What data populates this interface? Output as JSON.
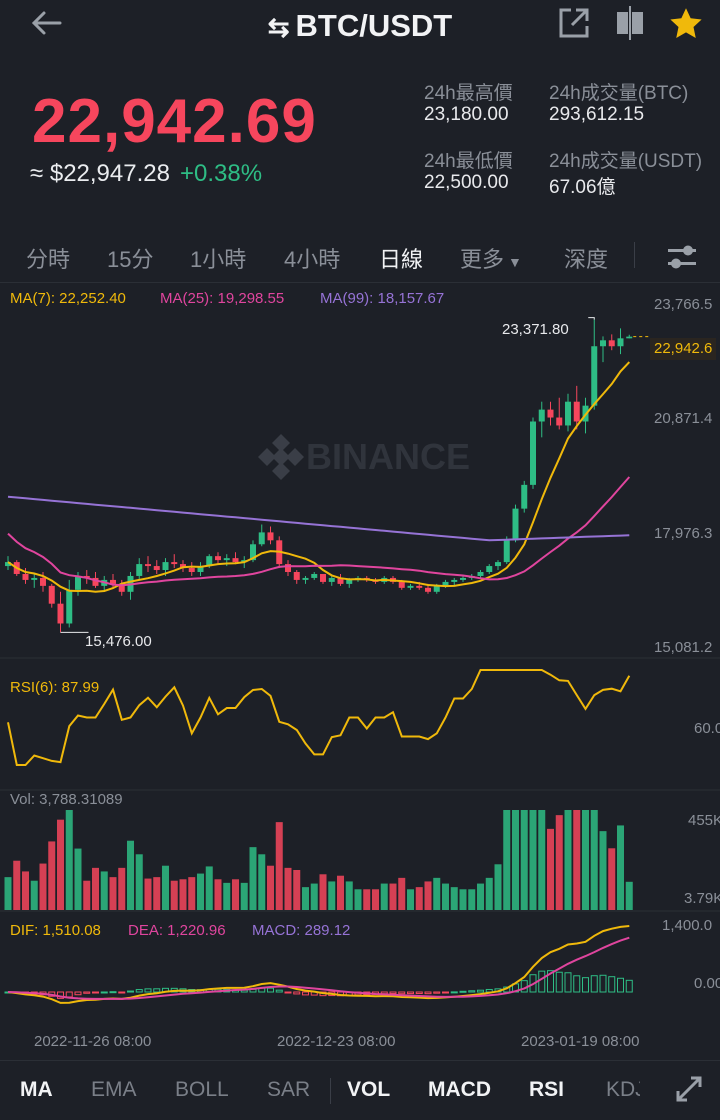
{
  "header": {
    "title": "BTC/USDT",
    "back_icon": "arrow-left-icon",
    "icons": [
      "share-icon",
      "compare-icon",
      "star-icon"
    ],
    "star_color": "#f0b90b"
  },
  "ticker": {
    "last_price": "22,942.69",
    "usd_value": "≈ $22,947.28",
    "change_pct": "+0.38%",
    "high_label": "24h最高價",
    "high_value": "23,180.00",
    "low_label": "24h最低價",
    "low_value": "22,500.00",
    "vol_btc_label": "24h成交量(BTC)",
    "vol_btc_value": "293,612.15",
    "vol_usdt_label": "24h成交量(USDT)",
    "vol_usdt_value": "67.06億"
  },
  "tabs": [
    "分時",
    "15分",
    "1小時",
    "4小時",
    "日線",
    "更多",
    "深度"
  ],
  "active_tab": "日線",
  "settings_icon": "sliders-icon",
  "main_chart": {
    "ma7": "MA(7): 22,252.40",
    "ma25": "MA(25): 19,298.55",
    "ma99": "MA(99): 18,157.67",
    "y_ticks": [
      "23,766.5",
      "20,871.4",
      "17,976.3",
      "15,081.2"
    ],
    "high_marker": "23,371.80",
    "low_marker": "15,476.00",
    "last_tag": "22,942.6",
    "watermark": "BINANCE",
    "colors": {
      "up": "#2ebd85",
      "down": "#f6465d",
      "ma7": "#f0b90b",
      "ma25": "#e0459e",
      "ma99": "#9673d6"
    }
  },
  "rsi": {
    "label": "RSI(6): 87.99",
    "tick": "60.0"
  },
  "volume": {
    "label": "Vol: 3,788.31089",
    "ticks": [
      "455K",
      "3.79K"
    ]
  },
  "macd": {
    "dif": "DIF: 1,510.08",
    "dea": "DEA: 1,220.96",
    "macd": "MACD: 289.12",
    "ticks": [
      "1,400.0",
      "0.00"
    ]
  },
  "x_labels": [
    "2022-11-26 08:00",
    "2022-12-23 08:00",
    "2023-01-19 08:00"
  ],
  "indicators": [
    "MA",
    "EMA",
    "BOLL",
    "SAR",
    "VOL",
    "MACD",
    "RSI",
    "KDJ"
  ],
  "active_indicators": [
    "MA",
    "VOL",
    "MACD",
    "RSI"
  ],
  "expand_icon": "expand-icon",
  "chart_data": {
    "type": "candlestick",
    "interval": "1d",
    "ylim": [
      15081.2,
      23766.5
    ],
    "candles": [
      [
        17150,
        17400,
        17050,
        17250
      ],
      [
        17250,
        17300,
        16900,
        16950
      ],
      [
        16950,
        17100,
        16700,
        16800
      ],
      [
        16800,
        16950,
        16600,
        16850
      ],
      [
        16850,
        17000,
        16500,
        16650
      ],
      [
        16650,
        16700,
        16100,
        16200
      ],
      [
        16200,
        16500,
        15476,
        15700
      ],
      [
        15700,
        16800,
        15600,
        16550
      ],
      [
        16550,
        17000,
        16400,
        16900
      ],
      [
        16900,
        17050,
        16700,
        16850
      ],
      [
        16850,
        17000,
        16600,
        16650
      ],
      [
        16650,
        16900,
        16500,
        16800
      ],
      [
        16800,
        16950,
        16600,
        16700
      ],
      [
        16700,
        16800,
        16400,
        16500
      ],
      [
        16500,
        17000,
        16300,
        16900
      ],
      [
        16900,
        17350,
        16800,
        17200
      ],
      [
        17200,
        17400,
        17000,
        17150
      ],
      [
        17150,
        17300,
        16950,
        17050
      ],
      [
        17050,
        17350,
        16900,
        17250
      ],
      [
        17250,
        17450,
        17100,
        17200
      ],
      [
        17200,
        17300,
        17000,
        17100
      ],
      [
        17100,
        17250,
        16900,
        17000
      ],
      [
        17000,
        17250,
        16900,
        17150
      ],
      [
        17150,
        17450,
        17100,
        17400
      ],
      [
        17400,
        17500,
        17200,
        17300
      ],
      [
        17300,
        17450,
        17150,
        17350
      ],
      [
        17350,
        17500,
        17200,
        17250
      ],
      [
        17250,
        17400,
        17100,
        17300
      ],
      [
        17300,
        17800,
        17250,
        17700
      ],
      [
        17700,
        18200,
        17650,
        18000
      ],
      [
        18000,
        18150,
        17700,
        17800
      ],
      [
        17800,
        17900,
        17100,
        17200
      ],
      [
        17200,
        17300,
        16900,
        17000
      ],
      [
        17000,
        17050,
        16700,
        16800
      ],
      [
        16800,
        16900,
        16700,
        16850
      ],
      [
        16850,
        17000,
        16800,
        16950
      ],
      [
        16950,
        16950,
        16700,
        16750
      ],
      [
        16750,
        16900,
        16650,
        16850
      ],
      [
        16850,
        16950,
        16650,
        16700
      ],
      [
        16700,
        16850,
        16600,
        16800
      ],
      [
        16800,
        16900,
        16750,
        16850
      ],
      [
        16850,
        16900,
        16750,
        16800
      ],
      [
        16800,
        16850,
        16700,
        16750
      ],
      [
        16750,
        16900,
        16700,
        16850
      ],
      [
        16850,
        16900,
        16700,
        16750
      ],
      [
        16750,
        16800,
        16550,
        16600
      ],
      [
        16600,
        16700,
        16550,
        16650
      ],
      [
        16650,
        16750,
        16550,
        16600
      ],
      [
        16600,
        16700,
        16450,
        16500
      ],
      [
        16500,
        16700,
        16450,
        16650
      ],
      [
        16650,
        16800,
        16600,
        16750
      ],
      [
        16750,
        16850,
        16650,
        16800
      ],
      [
        16800,
        16900,
        16750,
        16850
      ],
      [
        16850,
        16950,
        16800,
        16900
      ],
      [
        16900,
        17050,
        16850,
        17000
      ],
      [
        17000,
        17200,
        16950,
        17150
      ],
      [
        17150,
        17300,
        17050,
        17250
      ],
      [
        17250,
        17900,
        17200,
        17800
      ],
      [
        17800,
        18700,
        17750,
        18600
      ],
      [
        18600,
        19300,
        18500,
        19200
      ],
      [
        19200,
        20900,
        19100,
        20800
      ],
      [
        20800,
        21300,
        20400,
        21100
      ],
      [
        21100,
        21300,
        20700,
        20900
      ],
      [
        20900,
        21400,
        20600,
        20700
      ],
      [
        20700,
        21500,
        20550,
        21300
      ],
      [
        21300,
        21700,
        20600,
        20800
      ],
      [
        20800,
        21400,
        20500,
        21200
      ],
      [
        21200,
        23371.8,
        21100,
        22700
      ],
      [
        22700,
        22950,
        22300,
        22850
      ],
      [
        22850,
        23000,
        22600,
        22700
      ],
      [
        22700,
        23150,
        22500,
        22900
      ],
      [
        22900,
        22990,
        22900,
        22942.69
      ]
    ]
  }
}
